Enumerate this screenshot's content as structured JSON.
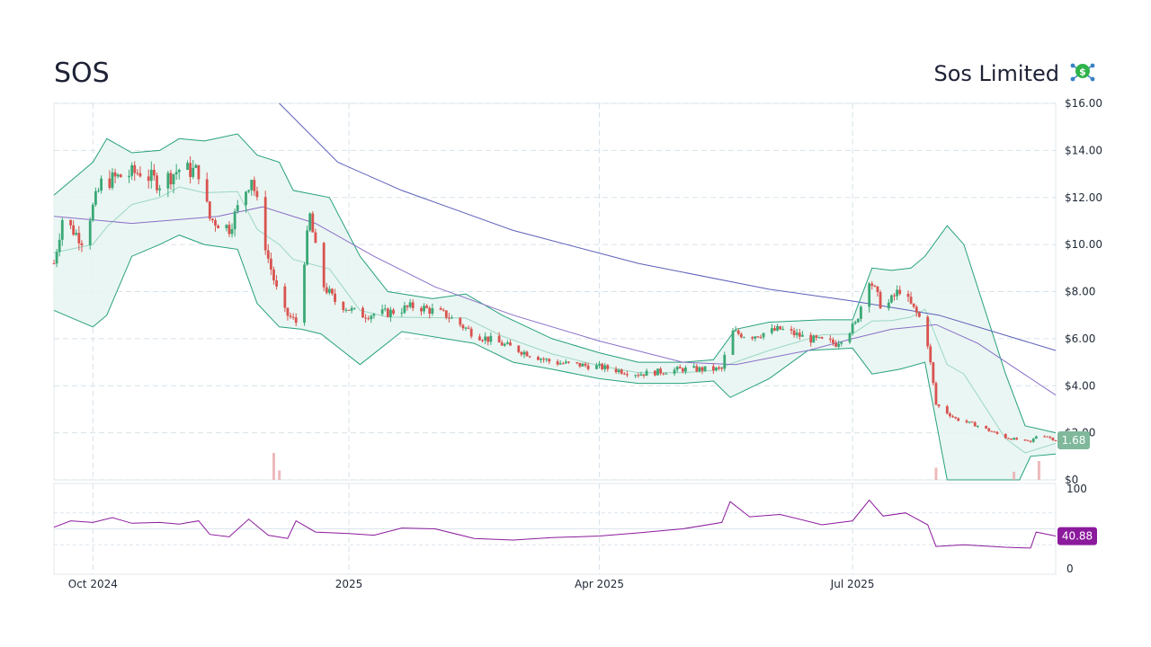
{
  "header": {
    "ticker": "SOS",
    "company": "Sos Limited",
    "logo_icon": "dollar-network-icon"
  },
  "colors": {
    "up": "#3aa876",
    "down": "#d9534f",
    "bollinger": "#26a17b",
    "bollinger_fill": "#e6f4f1",
    "ma_short": "#8a6fc7",
    "ma_long": "#5b5fb8",
    "rsi": "#8b1a9c",
    "price_badge": "#7fb89a",
    "rsi_badge": "#8b1a9c"
  },
  "chart_data": {
    "type": "candlestick",
    "x_range": [
      "2024-09-17",
      "2025-09-12"
    ],
    "price_range": [
      0,
      16
    ],
    "price_ticks": [
      "$0",
      "$2.00",
      "$4.00",
      "$6.00",
      "$8.00",
      "$10.00",
      "$12.00",
      "$14.00",
      "$16.00"
    ],
    "x_ticks": [
      {
        "label": "Oct 2024",
        "date": "2024-10-01"
      },
      {
        "label": "2025",
        "date": "2025-01-01"
      },
      {
        "label": "Apr 2025",
        "date": "2025-04-01"
      },
      {
        "label": "Jul 2025",
        "date": "2025-07-01"
      }
    ],
    "last_price": "1.68",
    "close_anchors": [
      [
        "2024-09-17",
        9.2
      ],
      [
        "2024-09-20",
        11.1
      ],
      [
        "2024-09-27",
        10.2
      ],
      [
        "2024-10-04",
        12.6
      ],
      [
        "2024-10-11",
        12.9
      ],
      [
        "2024-10-18",
        13.1
      ],
      [
        "2024-10-25",
        12.6
      ],
      [
        "2024-11-01",
        13.2
      ],
      [
        "2024-11-08",
        13.1
      ],
      [
        "2024-11-12",
        11.1
      ],
      [
        "2024-11-19",
        10.7
      ],
      [
        "2024-11-27",
        12.9
      ],
      [
        "2024-12-03",
        9.4
      ],
      [
        "2024-12-08",
        7.2
      ],
      [
        "2024-12-13",
        6.7
      ],
      [
        "2024-12-18",
        11.2
      ],
      [
        "2024-12-22",
        8.4
      ],
      [
        "2024-12-27",
        7.6
      ],
      [
        "2025-01-05",
        7.0
      ],
      [
        "2025-01-15",
        7.1
      ],
      [
        "2025-01-25",
        7.4
      ],
      [
        "2025-02-05",
        7.0
      ],
      [
        "2025-02-15",
        6.2
      ],
      [
        "2025-03-01",
        5.6
      ],
      [
        "2025-03-15",
        5.0
      ],
      [
        "2025-04-01",
        4.8
      ],
      [
        "2025-04-15",
        4.5
      ],
      [
        "2025-05-01",
        4.7
      ],
      [
        "2025-05-15",
        4.7
      ],
      [
        "2025-05-18",
        6.3
      ],
      [
        "2025-05-25",
        6.1
      ],
      [
        "2025-06-05",
        6.4
      ],
      [
        "2025-06-15",
        6.0
      ],
      [
        "2025-06-25",
        5.8
      ],
      [
        "2025-07-02",
        6.6
      ],
      [
        "2025-07-07",
        8.6
      ],
      [
        "2025-07-12",
        7.2
      ],
      [
        "2025-07-18",
        8.1
      ],
      [
        "2025-07-25",
        6.9
      ],
      [
        "2025-07-28",
        5.8
      ],
      [
        "2025-07-31",
        3.2
      ],
      [
        "2025-08-07",
        2.6
      ],
      [
        "2025-08-15",
        2.3
      ],
      [
        "2025-08-25",
        1.8
      ],
      [
        "2025-09-03",
        1.6
      ],
      [
        "2025-09-06",
        2.0
      ],
      [
        "2025-09-12",
        1.68
      ]
    ],
    "ma_long": [
      [
        "2024-12-07",
        16.0
      ],
      [
        "2024-12-28",
        13.5
      ],
      [
        "2025-01-20",
        12.3
      ],
      [
        "2025-03-01",
        10.6
      ],
      [
        "2025-04-15",
        9.2
      ],
      [
        "2025-06-01",
        8.1
      ],
      [
        "2025-07-01",
        7.6
      ],
      [
        "2025-08-01",
        7.0
      ],
      [
        "2025-09-12",
        5.5
      ]
    ],
    "ma_short": [
      [
        "2024-09-17",
        11.2
      ],
      [
        "2024-10-15",
        10.9
      ],
      [
        "2024-11-15",
        11.2
      ],
      [
        "2024-12-01",
        11.6
      ],
      [
        "2024-12-20",
        10.9
      ],
      [
        "2025-01-10",
        9.5
      ],
      [
        "2025-02-01",
        8.2
      ],
      [
        "2025-03-01",
        7.0
      ],
      [
        "2025-04-01",
        5.9
      ],
      [
        "2025-05-01",
        5.0
      ],
      [
        "2025-05-20",
        4.9
      ],
      [
        "2025-06-15",
        5.5
      ],
      [
        "2025-07-01",
        6.0
      ],
      [
        "2025-07-15",
        6.4
      ],
      [
        "2025-07-31",
        6.6
      ],
      [
        "2025-08-15",
        5.8
      ],
      [
        "2025-09-12",
        3.6
      ]
    ],
    "bollinger_upper": [
      [
        "2024-09-17",
        12.1
      ],
      [
        "2024-10-01",
        13.5
      ],
      [
        "2024-10-06",
        14.5
      ],
      [
        "2024-10-15",
        13.9
      ],
      [
        "2024-10-25",
        14.0
      ],
      [
        "2024-11-01",
        14.5
      ],
      [
        "2024-11-10",
        14.4
      ],
      [
        "2024-11-22",
        14.7
      ],
      [
        "2024-11-29",
        13.8
      ],
      [
        "2024-12-07",
        13.5
      ],
      [
        "2024-12-12",
        12.3
      ],
      [
        "2024-12-25",
        12.0
      ],
      [
        "2025-01-05",
        9.5
      ],
      [
        "2025-01-15",
        8.0
      ],
      [
        "2025-01-31",
        7.7
      ],
      [
        "2025-02-12",
        7.9
      ],
      [
        "2025-02-25",
        7.0
      ],
      [
        "2025-03-15",
        6.0
      ],
      [
        "2025-04-01",
        5.4
      ],
      [
        "2025-04-15",
        5.0
      ],
      [
        "2025-05-01",
        5.0
      ],
      [
        "2025-05-12",
        5.1
      ],
      [
        "2025-05-20",
        6.4
      ],
      [
        "2025-06-01",
        6.7
      ],
      [
        "2025-06-20",
        6.8
      ],
      [
        "2025-07-01",
        6.8
      ],
      [
        "2025-07-08",
        9.0
      ],
      [
        "2025-07-15",
        8.9
      ],
      [
        "2025-07-22",
        9.0
      ],
      [
        "2025-07-27",
        9.5
      ],
      [
        "2025-08-04",
        10.8
      ],
      [
        "2025-08-10",
        10.0
      ],
      [
        "2025-08-25",
        4.5
      ],
      [
        "2025-09-01",
        2.3
      ],
      [
        "2025-09-12",
        2.0
      ]
    ],
    "bollinger_lower": [
      [
        "2024-09-17",
        7.2
      ],
      [
        "2024-10-01",
        6.5
      ],
      [
        "2024-10-06",
        7.0
      ],
      [
        "2024-10-15",
        9.5
      ],
      [
        "2024-10-25",
        10.0
      ],
      [
        "2024-11-01",
        10.4
      ],
      [
        "2024-11-10",
        10.0
      ],
      [
        "2024-11-22",
        9.8
      ],
      [
        "2024-11-29",
        7.5
      ],
      [
        "2024-12-07",
        6.5
      ],
      [
        "2024-12-15",
        6.4
      ],
      [
        "2024-12-22",
        6.2
      ],
      [
        "2025-01-05",
        4.9
      ],
      [
        "2025-01-20",
        6.3
      ],
      [
        "2025-02-15",
        5.8
      ],
      [
        "2025-03-01",
        5.0
      ],
      [
        "2025-03-15",
        4.7
      ],
      [
        "2025-04-01",
        4.3
      ],
      [
        "2025-04-15",
        4.1
      ],
      [
        "2025-05-01",
        4.1
      ],
      [
        "2025-05-12",
        4.2
      ],
      [
        "2025-05-18",
        3.5
      ],
      [
        "2025-06-01",
        4.3
      ],
      [
        "2025-06-15",
        5.5
      ],
      [
        "2025-07-01",
        5.6
      ],
      [
        "2025-07-08",
        4.5
      ],
      [
        "2025-07-18",
        4.7
      ],
      [
        "2025-07-27",
        5.0
      ],
      [
        "2025-08-04",
        -1.0
      ],
      [
        "2025-08-15",
        -1.0
      ],
      [
        "2025-08-30",
        -1.0
      ],
      [
        "2025-09-03",
        1.0
      ],
      [
        "2025-09-12",
        1.1
      ]
    ],
    "volume_spikes": [
      [
        "2024-12-05",
        1.0
      ],
      [
        "2024-12-07",
        0.35
      ],
      [
        "2025-07-31",
        0.45
      ],
      [
        "2025-08-28",
        0.3
      ],
      [
        "2025-09-06",
        0.7
      ]
    ],
    "rsi": {
      "range": [
        0,
        100
      ],
      "ticks": [
        "0",
        "100"
      ],
      "bands": [
        30,
        50,
        70
      ],
      "last": "40.88",
      "points": [
        [
          "2024-09-17",
          52
        ],
        [
          "2024-09-23",
          60
        ],
        [
          "2024-10-01",
          58
        ],
        [
          "2024-10-08",
          64
        ],
        [
          "2024-10-15",
          57
        ],
        [
          "2024-10-25",
          58
        ],
        [
          "2024-11-01",
          56
        ],
        [
          "2024-11-08",
          60
        ],
        [
          "2024-11-12",
          43
        ],
        [
          "2024-11-19",
          40
        ],
        [
          "2024-11-26",
          62
        ],
        [
          "2024-12-03",
          42
        ],
        [
          "2024-12-10",
          38
        ],
        [
          "2024-12-13",
          60
        ],
        [
          "2024-12-20",
          46
        ],
        [
          "2025-01-01",
          44
        ],
        [
          "2025-01-10",
          42
        ],
        [
          "2025-01-20",
          51
        ],
        [
          "2025-02-01",
          50
        ],
        [
          "2025-02-15",
          38
        ],
        [
          "2025-03-01",
          36
        ],
        [
          "2025-03-15",
          39
        ],
        [
          "2025-04-01",
          41
        ],
        [
          "2025-04-15",
          45
        ],
        [
          "2025-05-01",
          50
        ],
        [
          "2025-05-15",
          58
        ],
        [
          "2025-05-18",
          84
        ],
        [
          "2025-05-25",
          65
        ],
        [
          "2025-06-05",
          68
        ],
        [
          "2025-06-20",
          55
        ],
        [
          "2025-07-01",
          60
        ],
        [
          "2025-07-07",
          86
        ],
        [
          "2025-07-12",
          66
        ],
        [
          "2025-07-20",
          70
        ],
        [
          "2025-07-28",
          55
        ],
        [
          "2025-07-31",
          28
        ],
        [
          "2025-08-10",
          30
        ],
        [
          "2025-08-25",
          27
        ],
        [
          "2025-09-03",
          26
        ],
        [
          "2025-09-05",
          46
        ],
        [
          "2025-09-12",
          41
        ]
      ]
    }
  }
}
